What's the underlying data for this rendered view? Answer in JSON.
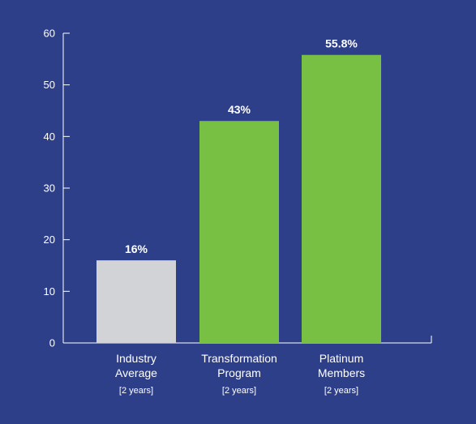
{
  "chart_data": {
    "type": "bar",
    "title": "",
    "xlabel": "",
    "ylabel": "",
    "categories": [
      {
        "lines": [
          "Industry",
          "Average"
        ],
        "note": "[2 years]"
      },
      {
        "lines": [
          "Transformation",
          "Program"
        ],
        "note": "[2 years]"
      },
      {
        "lines": [
          "Platinum",
          "Members"
        ],
        "note": "[2 years]"
      }
    ],
    "values": [
      16,
      43,
      55.8
    ],
    "value_labels": [
      "16%",
      "43%",
      "55.8%"
    ],
    "ylim": [
      0,
      60
    ],
    "yticks": [
      0,
      10,
      20,
      30,
      40,
      50,
      60
    ],
    "grid": false,
    "legend": "none",
    "colors": {
      "background": "#2e3f8a",
      "axis": "#ffffff",
      "bars": [
        "#d2d3d6",
        "#77c043",
        "#77c043"
      ]
    }
  }
}
